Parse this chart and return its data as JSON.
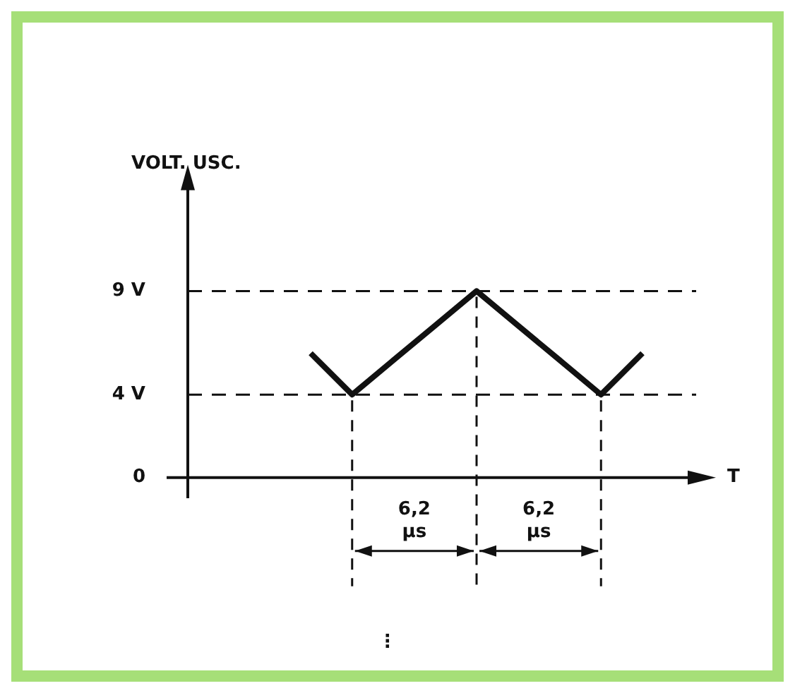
{
  "chart_data": {
    "type": "line",
    "ylabel": "VOLT. USC.",
    "xlabel": "T",
    "categories": [
      null,
      null,
      null,
      null,
      null,
      null,
      null,
      null,
      null
    ],
    "series": [
      {
        "color": "#111111",
        "values": [
          6,
          4,
          5.67,
          7.33,
          9,
          7.33,
          5.67,
          4,
          6
        ]
      }
    ],
    "ylim": [
      -1,
      14
    ],
    "yticks": [
      0,
      {
        "value": 4,
        "label": "4 V"
      },
      {
        "value": 9,
        "label": "9 V"
      }
    ],
    "tick_labels": "y",
    "grid": false,
    "legend": false,
    "marker": "none",
    "line_style": "solid",
    "ref_lines": [
      {
        "axis": "y",
        "value": 9,
        "line_style": "dashed",
        "color": "#111111"
      },
      {
        "axis": "y",
        "value": 4,
        "line_style": "dashed",
        "color": "#111111"
      }
    ],
    "annotations": [
      "6,2\nμs",
      "6,2\nμs",
      "⋮"
    ]
  }
}
